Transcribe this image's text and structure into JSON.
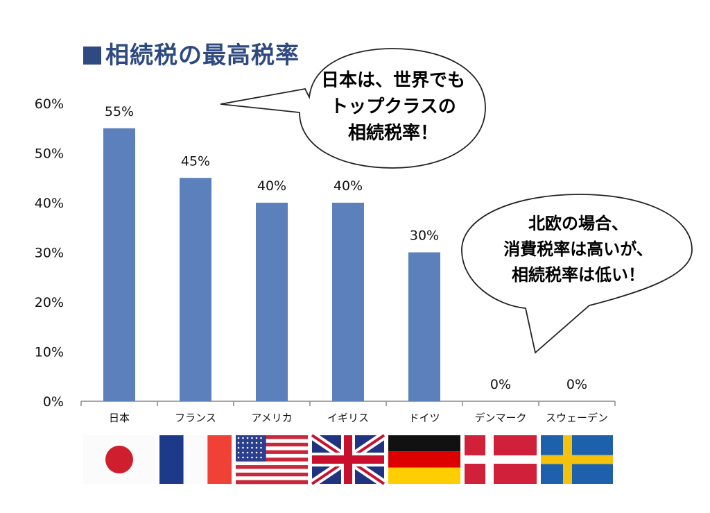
{
  "title": "相続税の最高税率",
  "chart_data": {
    "type": "bar",
    "title": "相続税の最高税率",
    "categories": [
      "日本",
      "フランス",
      "アメリカ",
      "イギリス",
      "ドイツ",
      "デンマーク",
      "スウェーデン"
    ],
    "values": [
      55,
      45,
      40,
      40,
      30,
      0,
      0
    ],
    "value_labels": [
      "55%",
      "45%",
      "40%",
      "40%",
      "30%",
      "0%",
      "0%"
    ],
    "yticks": [
      "0%",
      "10%",
      "20%",
      "30%",
      "40%",
      "50%",
      "60%"
    ],
    "ylim": [
      0,
      60
    ],
    "xlabel": "",
    "ylabel": "",
    "grid": false,
    "bar_color": "#5b80bb",
    "flags": [
      "japan-flag",
      "france-flag",
      "usa-flag",
      "uk-flag",
      "germany-flag",
      "denmark-flag",
      "sweden-flag"
    ]
  },
  "bubbles": [
    {
      "lines": [
        "日本は、世界でも",
        "トップクラスの",
        "相続税率！"
      ]
    },
    {
      "lines": [
        "北欧の場合、",
        "消費税率は高いが、",
        "相続税率は低い！"
      ]
    }
  ]
}
